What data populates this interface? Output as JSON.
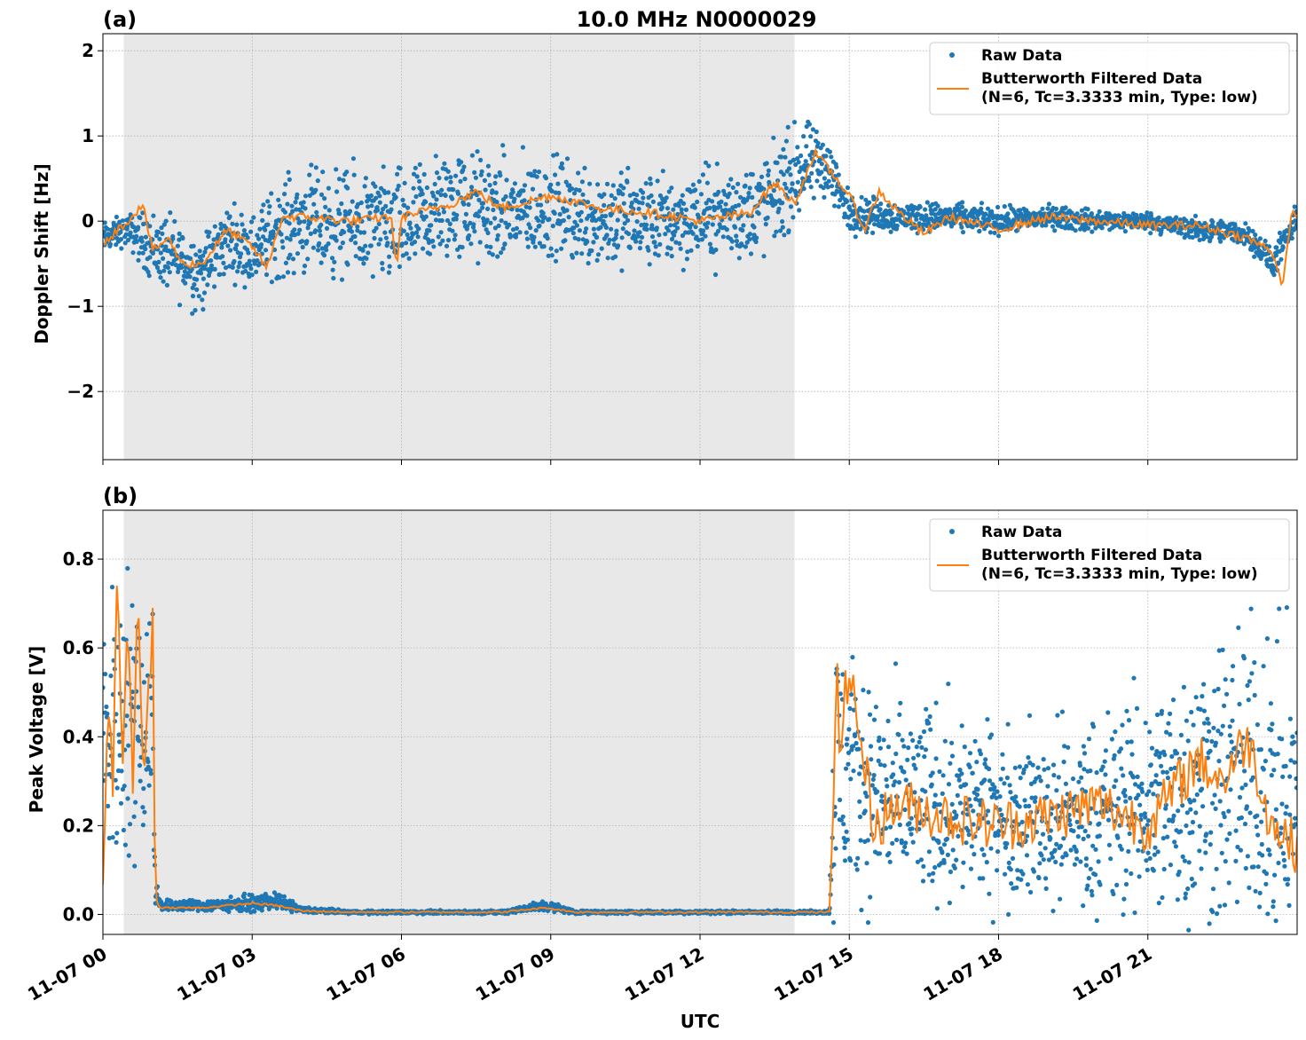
{
  "figure": {
    "title": "10.0 MHz N0000029",
    "xlabel": "UTC",
    "x_tick_labels": [
      "11-07 00",
      "11-07 03",
      "11-07 06",
      "11-07 09",
      "11-07 12",
      "11-07 15",
      "11-07 18",
      "11-07 21"
    ]
  },
  "colors": {
    "raw": "#1f77b4",
    "filtered": "#ff7f0e",
    "night_shade": "#e8e8e8",
    "grid": "#b0b0b0"
  },
  "chart_data": [
    {
      "panel_label": "(a)",
      "type": "scatter",
      "ylabel": "Doppler Shift [Hz]",
      "xlim_hours_utc": [
        0,
        24
      ],
      "ylim": [
        -2.8,
        2.2
      ],
      "y_tick_labels": [
        "−2",
        "−1",
        "0",
        "1",
        "2"
      ],
      "y_ticks": [
        -2,
        -1,
        0,
        1,
        2
      ],
      "grid": true,
      "legend_position": "top-right",
      "shaded_interval_hours_utc": [
        0.42,
        13.9
      ],
      "series": [
        {
          "name": "Raw Data",
          "style": "dots",
          "x_hours_utc": [
            0,
            0.5,
            1,
            1.5,
            2,
            2.5,
            3,
            3.5,
            4,
            5,
            6,
            7,
            8,
            9,
            10,
            11,
            12,
            13,
            13.5,
            14,
            14.5,
            15,
            16,
            17,
            18,
            19,
            20,
            21,
            22,
            23,
            23.5,
            24
          ],
          "y_center": [
            -0.2,
            -0.1,
            -0.3,
            -0.45,
            -0.6,
            -0.2,
            -0.35,
            -0.1,
            0.0,
            -0.05,
            -0.1,
            0.2,
            0.1,
            0.15,
            0.05,
            0.0,
            0.05,
            0.1,
            0.3,
            0.6,
            0.7,
            0.1,
            0.05,
            0.05,
            0.0,
            0.05,
            0.0,
            0.0,
            -0.1,
            -0.15,
            -0.5,
            0.0
          ],
          "y_spread": [
            0.2,
            0.2,
            0.45,
            0.5,
            0.5,
            0.45,
            0.45,
            0.6,
            0.65,
            0.7,
            0.75,
            0.75,
            0.7,
            0.65,
            0.7,
            0.6,
            0.6,
            0.65,
            0.65,
            0.6,
            0.45,
            0.25,
            0.2,
            0.18,
            0.17,
            0.15,
            0.14,
            0.12,
            0.15,
            0.15,
            0.2,
            0.2
          ]
        },
        {
          "name": "Butterworth Filtered Data\n(N=6, Tc=3.3333 min, Type: low)",
          "style": "line",
          "x_hours_utc": [
            0,
            0.5,
            0.8,
            1,
            1.3,
            1.6,
            2,
            2.5,
            3,
            3.3,
            3.6,
            4,
            5,
            5.8,
            5.9,
            6,
            7,
            7.5,
            8,
            9,
            10,
            11,
            12,
            13,
            13.5,
            13.9,
            14.3,
            14.6,
            15,
            15.3,
            15.6,
            16,
            16.5,
            17,
            18,
            19,
            20,
            21,
            22,
            23,
            23.5,
            23.7,
            23.9,
            24
          ],
          "y": [
            -0.25,
            0.0,
            0.2,
            -0.35,
            -0.2,
            -0.5,
            -0.5,
            -0.1,
            -0.3,
            -0.55,
            0.05,
            0.05,
            0.0,
            0.05,
            -0.6,
            0.05,
            0.2,
            0.35,
            0.15,
            0.3,
            0.15,
            0.1,
            0.0,
            0.1,
            0.45,
            0.2,
            0.8,
            0.6,
            0.3,
            -0.1,
            0.35,
            0.1,
            -0.15,
            0.05,
            -0.1,
            0.05,
            0.0,
            -0.05,
            -0.05,
            -0.2,
            -0.35,
            -0.75,
            0.1,
            0.0
          ]
        }
      ]
    },
    {
      "panel_label": "(b)",
      "type": "scatter",
      "ylabel": "Peak Voltage [V]",
      "xlim_hours_utc": [
        0,
        24
      ],
      "ylim": [
        -0.045,
        0.91
      ],
      "y_tick_labels": [
        "0.0",
        "0.2",
        "0.4",
        "0.6",
        "0.8"
      ],
      "y_ticks": [
        0.0,
        0.2,
        0.4,
        0.6,
        0.8
      ],
      "grid": true,
      "legend_position": "top-right",
      "shaded_interval_hours_utc": [
        0.42,
        13.9
      ],
      "series": [
        {
          "name": "Raw Data",
          "style": "dots",
          "x_hours_utc": [
            0,
            0.5,
            1,
            1.05,
            1.2,
            2,
            3,
            3.5,
            4,
            5,
            6,
            8,
            8.9,
            9.5,
            12,
            14,
            14.6,
            14.7,
            14.8,
            15,
            16,
            17,
            18,
            19,
            20,
            21,
            22,
            23,
            24
          ],
          "y_center": [
            0.4,
            0.45,
            0.45,
            0.05,
            0.02,
            0.02,
            0.025,
            0.03,
            0.01,
            0.005,
            0.005,
            0.005,
            0.02,
            0.005,
            0.005,
            0.005,
            0.005,
            0.3,
            0.35,
            0.3,
            0.25,
            0.25,
            0.22,
            0.22,
            0.22,
            0.25,
            0.3,
            0.3,
            0.25
          ],
          "y_spread": [
            0.35,
            0.35,
            0.35,
            0.03,
            0.015,
            0.015,
            0.02,
            0.02,
            0.008,
            0.004,
            0.004,
            0.004,
            0.015,
            0.004,
            0.004,
            0.004,
            0.004,
            0.35,
            0.4,
            0.3,
            0.25,
            0.25,
            0.2,
            0.22,
            0.25,
            0.28,
            0.35,
            0.4,
            0.35
          ]
        },
        {
          "name": "Butterworth Filtered Data\n(N=6, Tc=3.3333 min, Type: low)",
          "style": "line",
          "x_hours_utc": [
            0,
            0.1,
            0.2,
            0.3,
            0.4,
            0.5,
            0.6,
            0.7,
            0.8,
            0.9,
            1.0,
            1.05,
            1.1,
            1.2,
            2,
            3,
            3.5,
            4,
            5,
            6,
            8,
            8.9,
            9.5,
            12,
            14,
            14.6,
            14.7,
            14.75,
            14.8,
            15,
            15.5,
            16,
            17,
            18,
            19,
            20,
            21,
            22,
            22.5,
            23,
            23.5,
            24
          ],
          "y": [
            0.1,
            0.45,
            0.3,
            0.78,
            0.35,
            0.7,
            0.25,
            0.77,
            0.3,
            0.5,
            0.65,
            0.05,
            0.02,
            0.015,
            0.015,
            0.025,
            0.02,
            0.008,
            0.005,
            0.005,
            0.005,
            0.015,
            0.005,
            0.005,
            0.005,
            0.005,
            0.3,
            0.62,
            0.4,
            0.55,
            0.2,
            0.25,
            0.22,
            0.2,
            0.22,
            0.25,
            0.2,
            0.35,
            0.3,
            0.4,
            0.2,
            0.15
          ]
        }
      ]
    }
  ]
}
